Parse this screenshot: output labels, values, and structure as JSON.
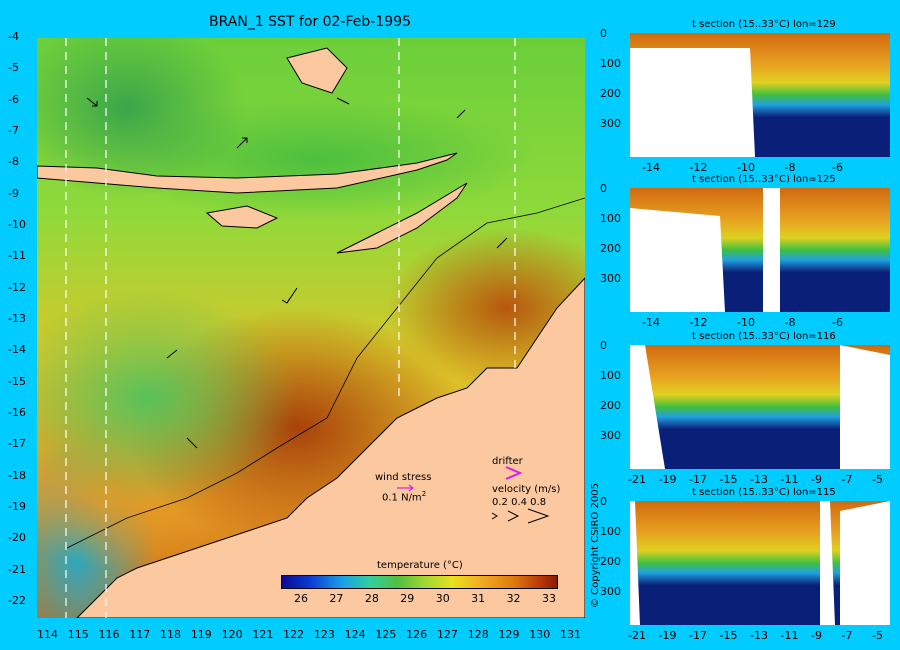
{
  "title": "BRAN_1 SST for 02-Feb-1995",
  "copyright": "© Copyright CSIRO 2005",
  "map": {
    "lon_ticks": [
      "114",
      "115",
      "116",
      "117",
      "118",
      "119",
      "120",
      "121",
      "122",
      "123",
      "124",
      "125",
      "126",
      "127",
      "128",
      "129",
      "130",
      "131"
    ],
    "lat_ticks": [
      "-4",
      "-5",
      "-6",
      "-7",
      "-8",
      "-9",
      "-10",
      "-11",
      "-12",
      "-13",
      "-14",
      "-15",
      "-16",
      "-17",
      "-18",
      "-19",
      "-20",
      "-21",
      "-22"
    ],
    "legend": {
      "wind_stress_label": "wind stress",
      "wind_stress_value": "0.1 N/m",
      "wind_stress_exp": "2",
      "drifter_label": "drifter",
      "velocity_label": "velocity (m/s)",
      "velocity_values": "0.2 0.4 0.8",
      "colorbar_title": "temperature (°C)",
      "colorbar_ticks": [
        "26",
        "27",
        "28",
        "29",
        "30",
        "31",
        "32",
        "33"
      ]
    },
    "colors": {
      "land": "#fbc8a0",
      "background": "#00ccff",
      "drifter": "#e020e0"
    }
  },
  "sections": [
    {
      "title": "t section (15..33°C) lon=129",
      "y_ticks": [
        "0",
        "100",
        "200",
        "300"
      ],
      "x_ticks": [
        "-14",
        "-12",
        "-10",
        "-8",
        "-6"
      ]
    },
    {
      "title": "t section (15..33°C) lon=125",
      "y_ticks": [
        "0",
        "100",
        "200",
        "300"
      ],
      "x_ticks": [
        "-14",
        "-12",
        "-10",
        "-8",
        "-6"
      ]
    },
    {
      "title": "t section (15..33°C) lon=116",
      "y_ticks": [
        "0",
        "100",
        "200",
        "300"
      ],
      "x_ticks": [
        "-21",
        "-19",
        "-17",
        "-15",
        "-13",
        "-11",
        "-9",
        "-7",
        "-5"
      ]
    },
    {
      "title": "t section (15..33°C) lon=115",
      "y_ticks": [
        "0",
        "100",
        "200",
        "300"
      ],
      "x_ticks": [
        "-21",
        "-19",
        "-17",
        "-15",
        "-13",
        "-11",
        "-9",
        "-7",
        "-5"
      ]
    }
  ]
}
